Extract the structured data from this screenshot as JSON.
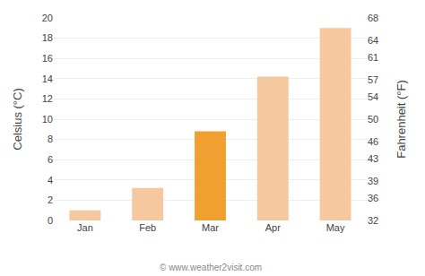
{
  "chart_data": {
    "type": "bar",
    "categories": [
      "Jan",
      "Feb",
      "Mar",
      "Apr",
      "May"
    ],
    "values": [
      1.0,
      3.2,
      8.8,
      14.2,
      19.0
    ],
    "colors": [
      "#f5c8a0",
      "#f5c8a0",
      "#f0a030",
      "#f5c8a0",
      "#f5c8a0"
    ],
    "ylabel": "Celsius (°C)",
    "y2label": "Fahrenheit (°F)",
    "ylim": [
      0,
      20
    ],
    "yticks": [
      0,
      2,
      4,
      6,
      8,
      10,
      12,
      14,
      16,
      18,
      20
    ],
    "y2lim": [
      32,
      68
    ],
    "y2ticks": [
      32,
      36,
      39,
      43,
      46,
      50,
      54,
      57,
      61,
      64,
      68
    ],
    "annotations": [
      "© www.weather2visit.com"
    ],
    "grid": true
  }
}
